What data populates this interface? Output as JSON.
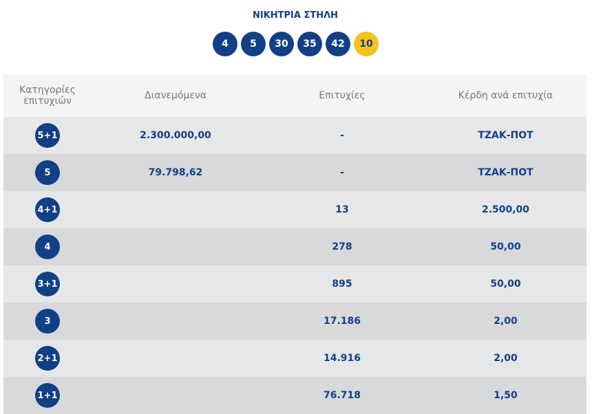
{
  "title": "ΝΙΚΗΤΡΙΑ ΣΤΗΛΗ",
  "numbers": [
    "4",
    "5",
    "30",
    "35",
    "42"
  ],
  "joker": "10",
  "colors": {
    "primary": "#123f86",
    "joker": "#f6c21c"
  },
  "headers": {
    "category": "Κατηγορίες επιτυχιών",
    "distributed": "Διανεμόμενα",
    "winners": "Επιτυχίες",
    "prize": "Κέρδη ανά επιτυχία"
  },
  "rows": [
    {
      "category": "5+1",
      "distributed": "2.300.000,00",
      "winners": "-",
      "prize": "ΤΖΑΚ-ΠΟΤ"
    },
    {
      "category": "5",
      "distributed": "79.798,62",
      "winners": "-",
      "prize": "ΤΖΑΚ-ΠΟΤ"
    },
    {
      "category": "4+1",
      "distributed": "",
      "winners": "13",
      "prize": "2.500,00"
    },
    {
      "category": "4",
      "distributed": "",
      "winners": "278",
      "prize": "50,00"
    },
    {
      "category": "3+1",
      "distributed": "",
      "winners": "895",
      "prize": "50,00"
    },
    {
      "category": "3",
      "distributed": "",
      "winners": "17.186",
      "prize": "2,00"
    },
    {
      "category": "2+1",
      "distributed": "",
      "winners": "14.916",
      "prize": "2,00"
    },
    {
      "category": "1+1",
      "distributed": "",
      "winners": "76.718",
      "prize": "1,50"
    }
  ]
}
